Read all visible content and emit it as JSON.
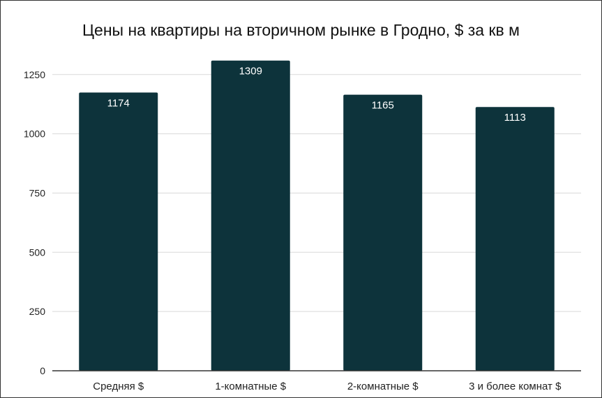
{
  "chart_data": {
    "type": "bar",
    "title": "Цены на квартиры на вторичном рынке в Гродно, $ за кв м",
    "xlabel": "",
    "ylabel": "",
    "categories": [
      "Средняя $",
      "1-комнатные $",
      "2-комнатные $",
      "3 и более комнат $"
    ],
    "values": [
      1174,
      1309,
      1165,
      1113
    ],
    "ylim": [
      0,
      1300
    ],
    "yticks": [
      0,
      250,
      500,
      750,
      1000,
      1250
    ],
    "grid": true,
    "legend": "none",
    "colors": {
      "bar": "#0d333b",
      "grid": "#d9d9d9",
      "axis": "#333333"
    }
  }
}
